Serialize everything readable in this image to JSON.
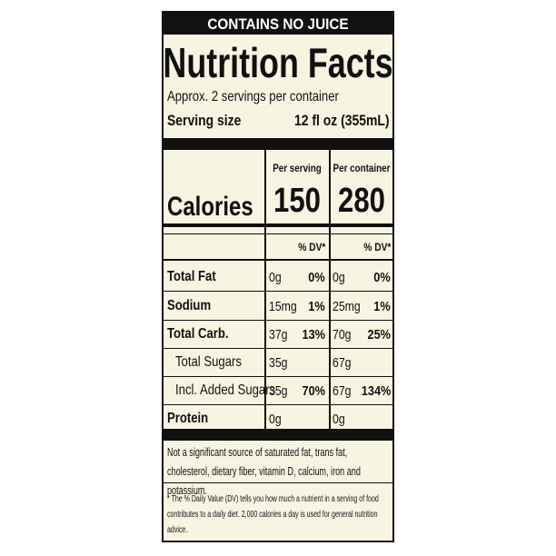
{
  "banner": "CONTAINS NO JUICE",
  "title": "Nutrition Facts",
  "servings": "Approx. 2 servings per container",
  "serving_size": {
    "label": "Serving size",
    "value": "12 fl oz (355mL)"
  },
  "columns": [
    "Per serving",
    "Per container"
  ],
  "calories": {
    "label": "Calories",
    "values": [
      150,
      280
    ]
  },
  "dv_header": [
    "% DV*",
    "% DV*"
  ],
  "rows": [
    {
      "nutrient": "Total Fat",
      "serving_amount": "0g",
      "serving_dv": "0%",
      "container_amount": "0g",
      "container_dv": "0%"
    },
    {
      "nutrient": "Sodium",
      "serving_amount": "15mg",
      "serving_dv": "1%",
      "container_amount": "25mg",
      "container_dv": "1%"
    },
    {
      "nutrient": "Total Carb.",
      "serving_amount": "37g",
      "serving_dv": "13%",
      "container_amount": "70g",
      "container_dv": "25%"
    },
    {
      "nutrient": "Total Sugars",
      "serving_amount": "35g",
      "container_amount": "67g"
    },
    {
      "nutrient": "Incl. Added Sugars",
      "serving_amount": "35g",
      "serving_dv": "70%",
      "container_amount": "67g",
      "container_dv": "134%"
    },
    {
      "nutrient": "Protein",
      "serving_amount": "0g",
      "container_amount": "0g"
    }
  ],
  "note": "Not a significant source of saturated fat, trans fat, cholesterol, dietary fiber, vitamin D, calcium, iron and potassium.",
  "footnote": "* The % Daily Value (DV) tells you how much a nutrient in a serving of food contributes to a daily diet. 2,000 calories a day is used for general nutrition advice."
}
